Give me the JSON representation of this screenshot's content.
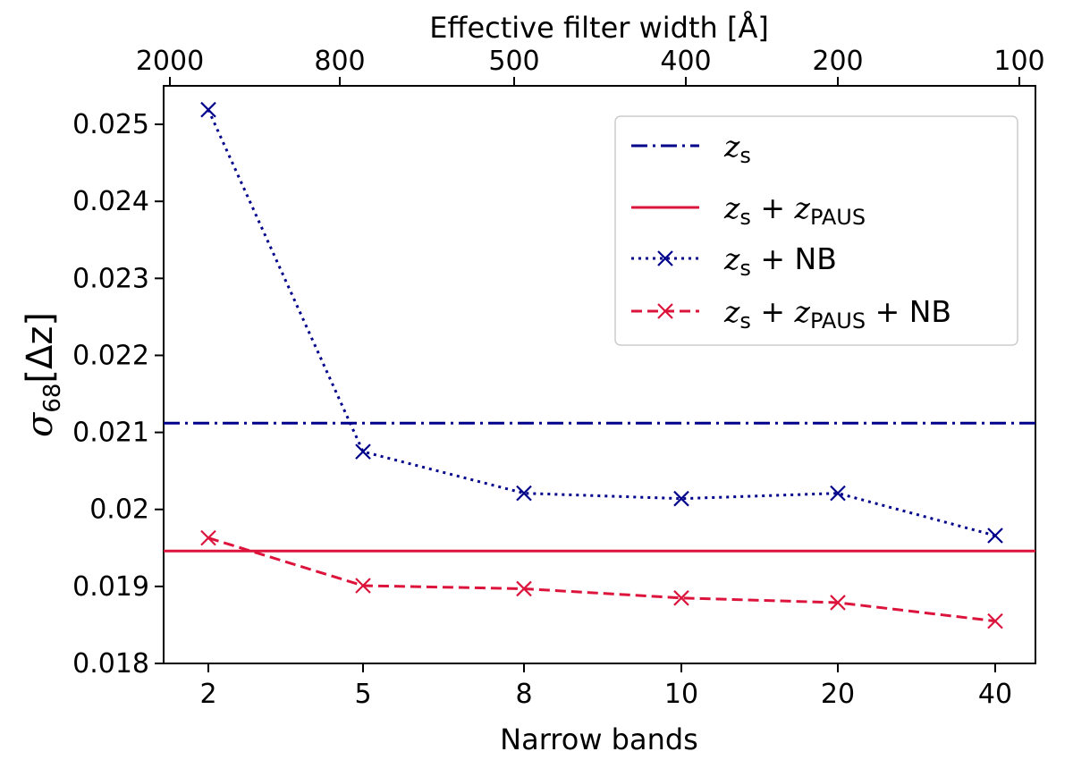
{
  "chart_data": {
    "type": "line",
    "xlabel": "Narrow bands",
    "x2label": "Effective filter width [Å]",
    "ylabel_symbol": "σ",
    "ylabel_sub": "68",
    "ylabel_rest": "[Δz]",
    "categories": [
      "2",
      "5",
      "8",
      "10",
      "20",
      "40"
    ],
    "top_ticks": [
      "2000",
      "800",
      "500",
      "400",
      "200",
      "100"
    ],
    "yticks": [
      "0.018",
      "0.019",
      "0.02",
      "0.021",
      "0.022",
      "0.023",
      "0.024",
      "0.025"
    ],
    "ylim": [
      0.018,
      0.0255
    ],
    "grid": false,
    "legend_position": "top-right",
    "hlines": [
      {
        "name": "zs",
        "value": 0.02112,
        "color": "#00008B",
        "style": "dashdot"
      },
      {
        "name": "zs + zPAUS",
        "value": 0.01946,
        "color": "#DC143C",
        "style": "solid"
      }
    ],
    "series": [
      {
        "name": "zs + NB",
        "color": "#00008B",
        "style": "dotted",
        "marker": "x",
        "values": [
          0.02519,
          0.02075,
          0.02021,
          0.02014,
          0.02021,
          0.01966
        ]
      },
      {
        "name": "zs + zPAUS + NB",
        "color": "#DC143C",
        "style": "dashed",
        "marker": "x",
        "values": [
          0.01963,
          0.01901,
          0.01897,
          0.01885,
          0.01879,
          0.01855
        ]
      }
    ],
    "legend": {
      "entries": [
        {
          "z": "z",
          "s": "s",
          "plus1": "",
          "z2": "",
          "paus": "",
          "tail": ""
        },
        {
          "z": "z",
          "s": "s",
          "plus1": " + ",
          "z2": "z",
          "paus": "PAUS",
          "tail": ""
        },
        {
          "z": "z",
          "s": "s",
          "plus1": "",
          "z2": "",
          "paus": "",
          "tail": " + NB"
        },
        {
          "z": "z",
          "s": "s",
          "plus1": " + ",
          "z2": "z",
          "paus": "PAUS",
          "tail": " + NB"
        }
      ]
    }
  }
}
